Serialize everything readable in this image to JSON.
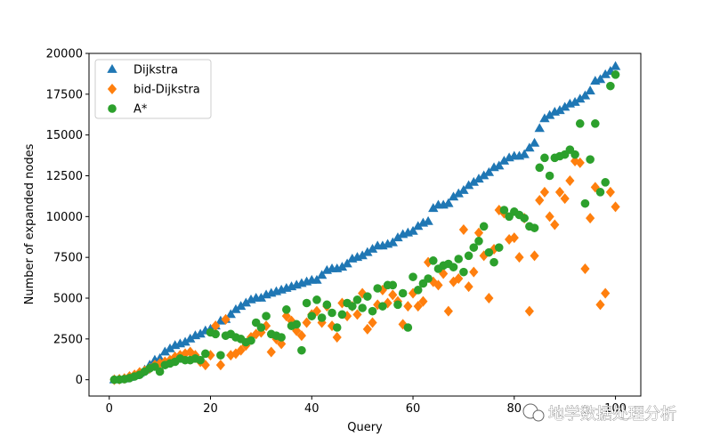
{
  "chart_data": {
    "type": "scatter",
    "xlabel": "Query",
    "ylabel": "Number of expanded nodes",
    "xlim": [
      -4,
      105
    ],
    "ylim": [
      -1000,
      20000
    ],
    "x_ticks": [
      0,
      20,
      40,
      60,
      80,
      100
    ],
    "y_ticks": [
      0,
      2500,
      5000,
      7500,
      10000,
      12500,
      15000,
      17500,
      20000
    ],
    "grid": false,
    "legend_position": "upper-left",
    "series": [
      {
        "name": "Dijkstra",
        "marker": "triangle",
        "color": "#1f77b4",
        "x": [
          1,
          2,
          3,
          4,
          5,
          6,
          7,
          8,
          9,
          10,
          11,
          12,
          13,
          14,
          15,
          16,
          17,
          18,
          19,
          20,
          21,
          22,
          23,
          24,
          25,
          26,
          27,
          28,
          29,
          30,
          31,
          32,
          33,
          34,
          35,
          36,
          37,
          38,
          39,
          40,
          41,
          42,
          43,
          44,
          45,
          46,
          47,
          48,
          49,
          50,
          51,
          52,
          53,
          54,
          55,
          56,
          57,
          58,
          59,
          60,
          61,
          62,
          63,
          64,
          65,
          66,
          67,
          68,
          69,
          70,
          71,
          72,
          73,
          74,
          75,
          76,
          77,
          78,
          79,
          80,
          81,
          82,
          83,
          84,
          85,
          86,
          87,
          88,
          89,
          90,
          91,
          92,
          93,
          94,
          95,
          96,
          97,
          98,
          99,
          100
        ],
        "y": [
          0,
          20,
          50,
          150,
          250,
          400,
          600,
          900,
          1200,
          1300,
          1700,
          1900,
          2100,
          2200,
          2300,
          2500,
          2700,
          2800,
          3000,
          3100,
          3300,
          3600,
          3700,
          4000,
          4300,
          4500,
          4700,
          4900,
          5000,
          5000,
          5200,
          5300,
          5400,
          5500,
          5600,
          5700,
          5800,
          5900,
          6000,
          6100,
          6100,
          6400,
          6700,
          6800,
          6800,
          6900,
          7100,
          7400,
          7500,
          7600,
          7800,
          8000,
          8200,
          8200,
          8300,
          8400,
          8700,
          8900,
          9000,
          9100,
          9400,
          9600,
          9700,
          10500,
          10700,
          10700,
          10800,
          11200,
          11400,
          11600,
          11900,
          12100,
          12300,
          12500,
          12700,
          13000,
          13100,
          13400,
          13600,
          13700,
          13700,
          13800,
          14200,
          14500,
          15400,
          16000,
          16200,
          16400,
          16500,
          16700,
          16900,
          17000,
          17200,
          17400,
          17700,
          18300,
          18400,
          18700,
          18900,
          19200
        ]
      },
      {
        "name": "bid-Dijkstra",
        "marker": "diamond",
        "color": "#ff7f0e",
        "x": [
          1,
          2,
          3,
          4,
          5,
          6,
          7,
          8,
          9,
          10,
          11,
          12,
          13,
          14,
          15,
          16,
          17,
          18,
          19,
          20,
          21,
          22,
          23,
          24,
          25,
          26,
          27,
          28,
          29,
          30,
          31,
          32,
          33,
          34,
          35,
          36,
          37,
          38,
          39,
          40,
          41,
          42,
          43,
          44,
          45,
          46,
          47,
          48,
          49,
          50,
          51,
          52,
          53,
          54,
          55,
          56,
          57,
          58,
          59,
          60,
          61,
          62,
          63,
          64,
          65,
          66,
          67,
          68,
          69,
          70,
          71,
          72,
          73,
          74,
          75,
          76,
          77,
          78,
          79,
          80,
          81,
          82,
          83,
          84,
          85,
          86,
          87,
          88,
          89,
          90,
          91,
          92,
          93,
          94,
          95,
          96,
          97,
          98,
          99,
          100
        ],
        "y": [
          0,
          30,
          80,
          200,
          300,
          450,
          550,
          700,
          900,
          1000,
          1100,
          1200,
          1400,
          1500,
          1600,
          1700,
          1500,
          1100,
          900,
          1500,
          3300,
          900,
          3700,
          1500,
          1600,
          1800,
          2100,
          2600,
          2800,
          2900,
          3300,
          1700,
          2500,
          2200,
          3900,
          3600,
          3000,
          2700,
          3500,
          4000,
          4200,
          3500,
          4500,
          3300,
          2600,
          4700,
          3900,
          4500,
          4000,
          5300,
          3100,
          3500,
          4600,
          5500,
          4700,
          5200,
          4800,
          3400,
          4500,
          5300,
          4500,
          4800,
          7200,
          6000,
          5800,
          6500,
          4200,
          6000,
          6200,
          9200,
          5700,
          6600,
          9000,
          7600,
          5000,
          8000,
          10400,
          10200,
          8600,
          8700,
          7500,
          9900,
          4200,
          7600,
          11000,
          11500,
          10000,
          9500,
          11500,
          11100,
          12200,
          13400,
          13300,
          6800,
          9900,
          11800,
          4600,
          5300,
          11500,
          10600
        ]
      },
      {
        "name": "A*",
        "marker": "circle",
        "color": "#2ca02c",
        "x": [
          1,
          2,
          3,
          4,
          5,
          6,
          7,
          8,
          9,
          10,
          11,
          12,
          13,
          14,
          15,
          16,
          17,
          18,
          19,
          20,
          21,
          22,
          23,
          24,
          25,
          26,
          27,
          28,
          29,
          30,
          31,
          32,
          33,
          34,
          35,
          36,
          37,
          38,
          39,
          40,
          41,
          42,
          43,
          44,
          45,
          46,
          47,
          48,
          49,
          50,
          51,
          52,
          53,
          54,
          55,
          56,
          57,
          58,
          59,
          60,
          61,
          62,
          63,
          64,
          65,
          66,
          67,
          68,
          69,
          70,
          71,
          72,
          73,
          74,
          75,
          76,
          77,
          78,
          79,
          80,
          81,
          82,
          83,
          84,
          85,
          86,
          87,
          88,
          89,
          90,
          91,
          92,
          93,
          94,
          95,
          96,
          97,
          98,
          99,
          100
        ],
        "y": [
          0,
          10,
          40,
          100,
          200,
          300,
          500,
          700,
          800,
          500,
          900,
          1000,
          1100,
          1300,
          1200,
          1200,
          1300,
          1200,
          1600,
          2900,
          2800,
          1500,
          2700,
          2800,
          2600,
          2500,
          2300,
          2400,
          3500,
          3200,
          3900,
          2800,
          2700,
          2600,
          4300,
          3300,
          3400,
          1800,
          4700,
          3900,
          4900,
          3800,
          4600,
          4100,
          3200,
          4000,
          4700,
          4500,
          4900,
          4400,
          5100,
          4200,
          5600,
          4500,
          5800,
          5800,
          4600,
          5300,
          3200,
          6300,
          5500,
          5900,
          6200,
          7300,
          6800,
          7000,
          7100,
          6900,
          7400,
          6600,
          7600,
          8100,
          8500,
          9400,
          7800,
          7200,
          8100,
          10400,
          10000,
          10300,
          10100,
          9900,
          9400,
          9300,
          13000,
          13600,
          12500,
          13600,
          13700,
          13800,
          14100,
          13800,
          15700,
          10800,
          13500,
          15700,
          11500,
          12100,
          18000,
          18700
        ]
      }
    ]
  },
  "watermark": {
    "text": "地学数据处理分析",
    "icon": "wechat-icon"
  }
}
